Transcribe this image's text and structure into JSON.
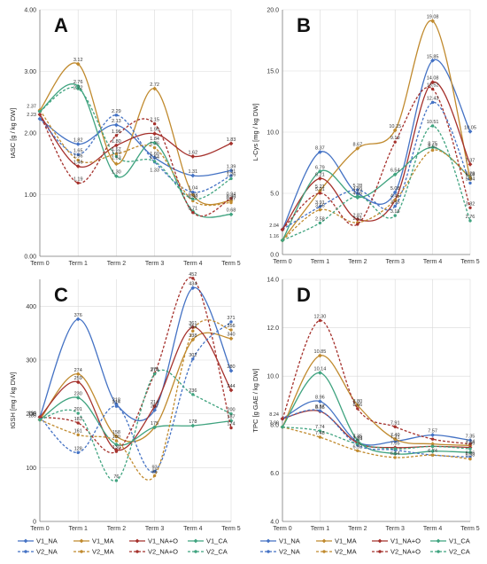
{
  "series_styles": {
    "V1_NA": {
      "color": "#4472c4",
      "dash": false
    },
    "V1_MA": {
      "color": "#c08a2e",
      "dash": false
    },
    "V1_NA+O": {
      "color": "#a5312c",
      "dash": false
    },
    "V1_CA": {
      "color": "#3fa37f",
      "dash": false
    },
    "V2_NA": {
      "color": "#4472c4",
      "dash": true
    },
    "V2_MA": {
      "color": "#c08a2e",
      "dash": true
    },
    "V2_NA+O": {
      "color": "#a5312c",
      "dash": true
    },
    "V2_CA": {
      "color": "#3fa37f",
      "dash": true
    }
  },
  "chart_data": [
    {
      "type": "line",
      "panel_letter": "A",
      "categories": [
        "Term 0",
        "Term 1",
        "Term 2",
        "Term 3",
        "Term 4",
        "Term 5"
      ],
      "ylabel": "tASC  [g / kg DW]",
      "ylim": [
        0,
        4
      ],
      "yticks": [
        "0.00",
        "1.00",
        "2.00",
        "3.00",
        "4.00"
      ],
      "grid": true,
      "series": [
        {
          "name": "V1_NA",
          "values": [
            2.23,
            1.82,
            2.13,
            1.6,
            1.31,
            1.39
          ]
        },
        {
          "name": "V1_MA",
          "values": [
            2.37,
            3.12,
            1.5,
            2.72,
            1.0,
            0.9
          ]
        },
        {
          "name": "V1_NA+O",
          "values": [
            2.3,
            1.46,
            1.8,
            1.99,
            1.62,
            1.83
          ]
        },
        {
          "name": "V1_CA",
          "values": [
            2.35,
            2.76,
            1.3,
            1.84,
            0.73,
            0.68
          ]
        },
        {
          "name": "V2_NA",
          "values": [
            2.23,
            1.65,
            2.29,
            1.53,
            1.04,
            1.31
          ]
        },
        {
          "name": "V2_MA",
          "values": [
            2.37,
            1.56,
            1.66,
            1.76,
            0.9,
            0.87
          ]
        },
        {
          "name": "V2_NA+O",
          "values": [
            2.3,
            1.19,
            1.96,
            2.15,
            0.71,
            0.94
          ]
        },
        {
          "name": "V2_CA",
          "values": [
            2.35,
            2.72,
            1.62,
            1.54,
            0.93,
            1.26
          ]
        }
      ],
      "labels": [
        [
          "3.12",
          1,
          3.12
        ],
        [
          "2.76",
          1,
          2.76
        ],
        [
          "2.72",
          1,
          2.67
        ],
        [
          "1.82",
          1,
          1.82
        ],
        [
          "1.65",
          1,
          1.65
        ],
        [
          "1.56",
          1,
          1.56
        ],
        [
          "1.46",
          1,
          1.46
        ],
        [
          "1.19",
          1,
          1.19
        ],
        [
          "2.29",
          2,
          2.29
        ],
        [
          "2.13",
          2,
          2.13
        ],
        [
          "1.96",
          2,
          1.96
        ],
        [
          "1.80",
          2,
          1.8
        ],
        [
          "1.67",
          2,
          1.67
        ],
        [
          "1.62",
          2,
          1.62
        ],
        [
          "1.53",
          2,
          1.53
        ],
        [
          "1.30",
          2,
          1.3
        ],
        [
          "2.72",
          3,
          2.72
        ],
        [
          "2.15",
          3,
          2.15
        ],
        [
          "1.99",
          3,
          1.99
        ],
        [
          "1.84",
          3,
          1.84
        ],
        [
          "1.76",
          3,
          1.76
        ],
        [
          "1.60",
          3,
          1.6
        ],
        [
          "1.54",
          3,
          1.54
        ],
        [
          "1.33",
          3,
          1.33
        ],
        [
          "1.62",
          4,
          1.62
        ],
        [
          "1.31",
          4,
          1.31
        ],
        [
          "1.04",
          4,
          1.04
        ],
        [
          "0.93",
          4,
          0.93
        ],
        [
          "0.90",
          4,
          0.9
        ],
        [
          "0.71",
          4,
          0.71
        ],
        [
          "1.83",
          5,
          1.83
        ],
        [
          "1.39",
          5,
          1.39
        ],
        [
          "1.31",
          5,
          1.31
        ],
        [
          "1.26",
          5,
          1.26
        ],
        [
          "0.94",
          5,
          0.94
        ],
        [
          "0.90",
          5,
          0.9
        ],
        [
          "0.87",
          5,
          0.87
        ],
        [
          "0.68",
          5,
          0.68
        ],
        [
          "2.37",
          0,
          2.37
        ],
        [
          "2.23",
          0,
          2.23
        ]
      ]
    },
    {
      "type": "line",
      "panel_letter": "B",
      "categories": [
        "Term 0",
        "Term 1",
        "Term 2",
        "Term 3",
        "Term 4",
        "Term 5"
      ],
      "ylabel": "L-Cys  [mg / kg DW]",
      "ylim": [
        0,
        20
      ],
      "yticks": [
        "0.0",
        "5.0",
        "10.0",
        "15.0",
        "20.0"
      ],
      "grid": true,
      "series": [
        {
          "name": "V1_NA",
          "values": [
            2.04,
            8.37,
            4.99,
            5.08,
            15.85,
            10.05
          ]
        },
        {
          "name": "V1_MA",
          "values": [
            1.16,
            5.21,
            8.67,
            10.15,
            19.08,
            6.18
          ]
        },
        {
          "name": "V1_NA+O",
          "values": [
            2.04,
            6.21,
            2.87,
            4.45,
            14.08,
            7.37
          ]
        },
        {
          "name": "V1_CA",
          "values": [
            1.16,
            6.79,
            4.66,
            6.54,
            8.75,
            6.28
          ]
        },
        {
          "name": "V2_NA",
          "values": [
            2.04,
            3.91,
            5.28,
            3.95,
            12.43,
            5.84
          ]
        },
        {
          "name": "V2_MA",
          "values": [
            1.16,
            3.65,
            2.61,
            4.45,
            8.52,
            6.28
          ]
        },
        {
          "name": "V2_NA+O",
          "values": [
            2.04,
            5.01,
            2.47,
            9.19,
            13.52,
            3.82
          ]
        },
        {
          "name": "V2_CA",
          "values": [
            1.16,
            2.58,
            4.76,
            3.18,
            10.51,
            2.76
          ]
        }
      ],
      "labels": [
        [
          "8.37",
          1,
          8.37
        ],
        [
          "6.79",
          1,
          6.79
        ],
        [
          "6.21",
          1,
          6.21
        ],
        [
          "5.21",
          1,
          5.21
        ],
        [
          "5.01",
          1,
          5.01
        ],
        [
          "3.91",
          1,
          3.91
        ],
        [
          "3.65",
          1,
          3.65
        ],
        [
          "2.58",
          1,
          2.58
        ],
        [
          "8.67",
          2,
          8.67
        ],
        [
          "5.28",
          2,
          5.28
        ],
        [
          "4.99",
          2,
          4.99
        ],
        [
          "4.66",
          2,
          4.66
        ],
        [
          "2.87",
          2,
          2.87
        ],
        [
          "2.61",
          2,
          2.61
        ],
        [
          "10.15",
          3,
          10.15
        ],
        [
          "9.19",
          3,
          9.19
        ],
        [
          "6.54",
          3,
          6.54
        ],
        [
          "5.08",
          3,
          5.08
        ],
        [
          "4.45",
          3,
          4.45
        ],
        [
          "3.95",
          3,
          3.95
        ],
        [
          "3.18",
          3,
          3.18
        ],
        [
          "19.08",
          4,
          19.08
        ],
        [
          "15.85",
          4,
          15.85
        ],
        [
          "14.08",
          4,
          14.08
        ],
        [
          "13.52",
          4,
          13.52
        ],
        [
          "12.43",
          4,
          12.43
        ],
        [
          "10.51",
          4,
          10.51
        ],
        [
          "8.75",
          4,
          8.75
        ],
        [
          "8.52",
          4,
          8.52
        ],
        [
          "10.05",
          5,
          10.05
        ],
        [
          "7.37",
          5,
          7.37
        ],
        [
          "6.28",
          5,
          6.28
        ],
        [
          "6.18",
          5,
          6.18
        ],
        [
          "5.84",
          5,
          5.84
        ],
        [
          "3.82",
          5,
          3.82
        ],
        [
          "2.76",
          5,
          2.76
        ],
        [
          "2.04",
          0,
          2.04
        ],
        [
          "1.16",
          0,
          1.16
        ]
      ]
    },
    {
      "type": "line",
      "panel_letter": "C",
      "categories": [
        "Term 0",
        "Term 1",
        "Term 2",
        "Term 3",
        "Term 4",
        "Term 5"
      ],
      "ylabel": "tGSH  [mg / kg DW]",
      "ylim": [
        0,
        450
      ],
      "yticks": [
        "0",
        "100",
        "200",
        "300",
        "400"
      ],
      "grid": true,
      "series": [
        {
          "name": "V1_NA",
          "values": [
            194,
            376,
            218,
            207,
            434,
            280
          ]
        },
        {
          "name": "V1_MA",
          "values": [
            189,
            274,
            158,
            175,
            338,
            340
          ]
        },
        {
          "name": "V1_NA+O",
          "values": [
            194,
            259,
            133,
            214,
            361,
            244
          ]
        },
        {
          "name": "V1_CA",
          "values": [
            189,
            230,
            143,
            175,
            178,
            187
          ]
        },
        {
          "name": "V2_NA",
          "values": [
            194,
            128,
            214,
            93,
            302,
            371
          ]
        },
        {
          "name": "V2_MA",
          "values": [
            189,
            161,
            150,
            85,
            354,
            356
          ]
        },
        {
          "name": "V2_NA+O",
          "values": [
            194,
            183,
            130,
            275,
            452,
            174
          ]
        },
        {
          "name": "V2_CA",
          "values": [
            189,
            201,
            76,
            274,
            236,
            200
          ]
        }
      ],
      "labels": [
        [
          "376",
          1,
          376
        ],
        [
          "274",
          1,
          274
        ],
        [
          "259",
          1,
          259
        ],
        [
          "230",
          1,
          230
        ],
        [
          "201",
          1,
          201
        ],
        [
          "183",
          1,
          183
        ],
        [
          "161",
          1,
          161
        ],
        [
          "128",
          1,
          128
        ],
        [
          "218",
          2,
          218
        ],
        [
          "214",
          2,
          214
        ],
        [
          "158",
          2,
          158
        ],
        [
          "150",
          2,
          150
        ],
        [
          "130",
          2,
          130
        ],
        [
          "76",
          2,
          76
        ],
        [
          "275",
          3,
          275
        ],
        [
          "274",
          3,
          274
        ],
        [
          "214",
          3,
          214
        ],
        [
          "207",
          3,
          207
        ],
        [
          "175",
          3,
          175
        ],
        [
          "93",
          3,
          93
        ],
        [
          "85",
          3,
          85
        ],
        [
          "452",
          4,
          452
        ],
        [
          "434",
          4,
          434
        ],
        [
          "361",
          4,
          361
        ],
        [
          "354",
          4,
          354
        ],
        [
          "338",
          4,
          338
        ],
        [
          "302",
          4,
          302
        ],
        [
          "236",
          4,
          236
        ],
        [
          "178",
          4,
          178
        ],
        [
          "371",
          5,
          371
        ],
        [
          "356",
          5,
          356
        ],
        [
          "340",
          5,
          340
        ],
        [
          "280",
          5,
          280
        ],
        [
          "244",
          5,
          244
        ],
        [
          "200",
          5,
          200
        ],
        [
          "187",
          5,
          187
        ],
        [
          "174",
          5,
          174
        ],
        [
          "194",
          0,
          194
        ],
        [
          "189",
          0,
          189
        ]
      ]
    },
    {
      "type": "line",
      "panel_letter": "D",
      "categories": [
        "Term 0",
        "Term 1",
        "Term 2",
        "Term 3",
        "Term 4",
        "Term 5"
      ],
      "ylabel": "TPC  [g GAE / kg DW]",
      "ylim": [
        4,
        14
      ],
      "yticks": [
        "4.0",
        "6.0",
        "8.0",
        "10.0",
        "12.0",
        "14.0"
      ],
      "grid": true,
      "series": [
        {
          "name": "V1_NA",
          "values": [
            8.24,
            8.96,
            7.28,
            7.31,
            7.57,
            7.35
          ]
        },
        {
          "name": "V1_MA",
          "values": [
            7.9,
            10.85,
            8.8,
            7.4,
            7.2,
            7.14
          ]
        },
        {
          "name": "V1_NA+O",
          "values": [
            8.24,
            8.55,
            7.24,
            7.05,
            7.1,
            7.06
          ]
        },
        {
          "name": "V1_CA",
          "values": [
            7.9,
            10.14,
            7.35,
            6.8,
            6.9,
            6.85
          ]
        },
        {
          "name": "V2_NA",
          "values": [
            8.24,
            8.57,
            7.15,
            6.95,
            6.74,
            6.66
          ]
        },
        {
          "name": "V2_MA",
          "values": [
            7.9,
            7.48,
            6.92,
            6.64,
            6.74,
            6.58
          ]
        },
        {
          "name": "V2_NA+O",
          "values": [
            8.24,
            12.3,
            8.66,
            7.91,
            7.4,
            7.2
          ]
        },
        {
          "name": "V2_CA",
          "values": [
            7.9,
            7.74,
            7.2,
            7.0,
            7.1,
            7.0
          ]
        }
      ],
      "labels": [
        [
          "12.30",
          1,
          12.3
        ],
        [
          "10.85",
          1,
          10.85
        ],
        [
          "10.14",
          1,
          10.14
        ],
        [
          "8.96",
          1,
          8.96
        ],
        [
          "8.57",
          1,
          8.57
        ],
        [
          "8.55",
          1,
          8.55
        ],
        [
          "7.74",
          1,
          7.74
        ],
        [
          "7.48",
          1,
          7.48
        ],
        [
          "8.80",
          2,
          8.8
        ],
        [
          "8.66",
          2,
          8.66
        ],
        [
          "7.28",
          2,
          7.28
        ],
        [
          "7.24",
          2,
          7.24
        ],
        [
          "7.35",
          2,
          7.35
        ],
        [
          "6.92",
          2,
          6.92
        ],
        [
          "7.91",
          3,
          7.91
        ],
        [
          "7.31",
          3,
          7.31
        ],
        [
          "7.40",
          3,
          7.4
        ],
        [
          "7.05",
          3,
          7.05
        ],
        [
          "6.64",
          3,
          6.64
        ],
        [
          "7.57",
          4,
          7.57
        ],
        [
          "6.74",
          4,
          6.74
        ],
        [
          "7.35",
          5,
          7.35
        ],
        [
          "7.14",
          5,
          7.14
        ],
        [
          "7.06",
          5,
          7.06
        ],
        [
          "6.66",
          5,
          6.66
        ],
        [
          "6.58",
          5,
          6.58
        ],
        [
          "8.24",
          0,
          8.24
        ],
        [
          "7.90",
          0,
          7.9
        ]
      ]
    }
  ]
}
